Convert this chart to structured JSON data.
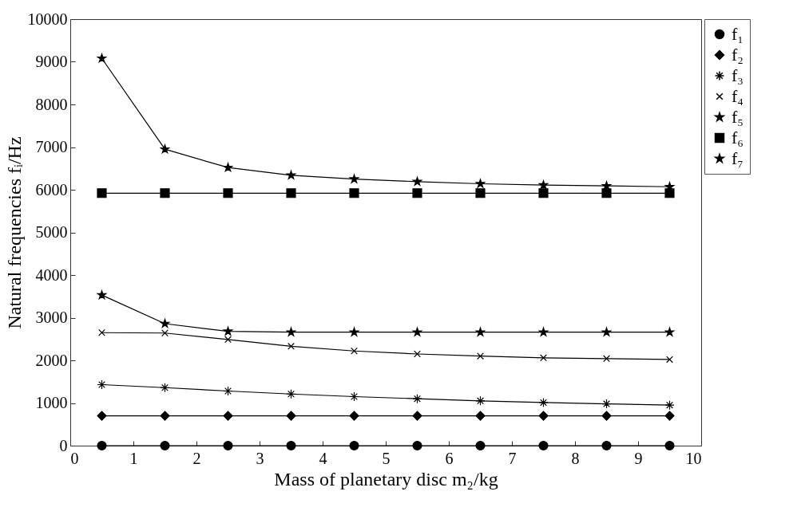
{
  "chart_data": {
    "type": "line",
    "xlabel": "Mass of planetary disc m₂/kg",
    "ylabel": "Natural frequencies fᵢ/Hz",
    "x": [
      0.5,
      1.5,
      2.5,
      3.5,
      4.5,
      5.5,
      6.5,
      7.5,
      8.5,
      9.5
    ],
    "series": [
      {
        "name": "f₁",
        "color": "#000000",
        "marker": "circle",
        "values": [
          0,
          0,
          0,
          0,
          0,
          0,
          0,
          0,
          0,
          0
        ]
      },
      {
        "name": "f₂",
        "color": "#000000",
        "marker": "diamond",
        "values": [
          700,
          700,
          700,
          700,
          700,
          700,
          700,
          700,
          700,
          700
        ]
      },
      {
        "name": "f₃",
        "color": "#000000",
        "marker": "cross",
        "values": [
          1430,
          1360,
          1280,
          1210,
          1150,
          1100,
          1050,
          1010,
          980,
          950
        ]
      },
      {
        "name": "f₄",
        "color": "#000000",
        "marker": "cross",
        "values": [
          2650,
          2640,
          2490,
          2330,
          2220,
          2150,
          2100,
          2060,
          2040,
          2020
        ]
      },
      {
        "name": "f₅",
        "color": "#000000",
        "marker": "star",
        "values": [
          3530,
          2860,
          2680,
          2660,
          2660,
          2660,
          2660,
          2660,
          2660,
          2660
        ]
      },
      {
        "name": "f₆",
        "color": "#000000",
        "marker": "square",
        "values": [
          5920,
          5920,
          5920,
          5920,
          5920,
          5920,
          5920,
          5920,
          5920,
          5920
        ]
      },
      {
        "name": "f₇",
        "color": "#000000",
        "marker": "star",
        "values": [
          9080,
          6950,
          6520,
          6340,
          6250,
          6190,
          6140,
          6110,
          6090,
          6070
        ]
      }
    ],
    "xlim": [
      0,
      10
    ],
    "xticks": [
      0,
      1,
      2,
      3,
      4,
      5,
      6,
      7,
      8,
      9,
      10
    ],
    "ylim": [
      0,
      10000
    ],
    "yticks": [
      0,
      1000,
      2000,
      3000,
      4000,
      5000,
      6000,
      7000,
      8000,
      9000,
      10000
    ],
    "grid": false,
    "legend": "top right"
  }
}
